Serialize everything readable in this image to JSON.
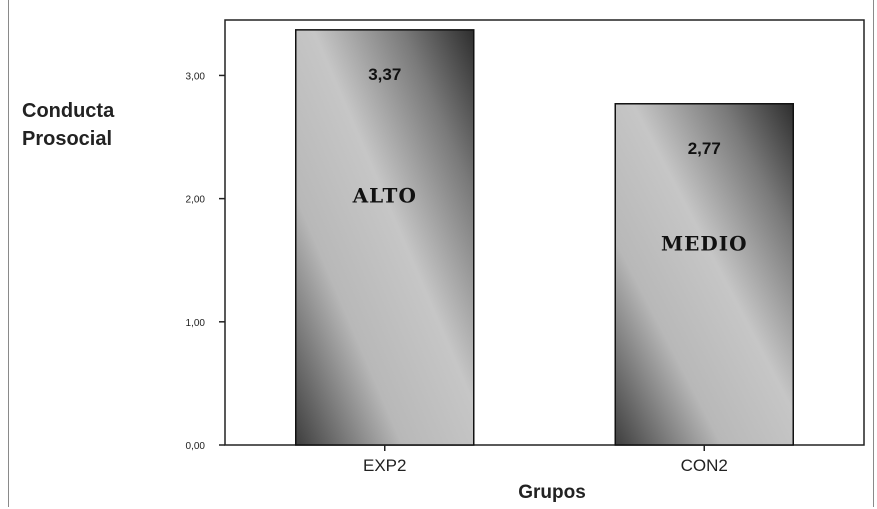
{
  "chart_data": {
    "type": "bar",
    "categories": [
      "EXP2",
      "CON2"
    ],
    "values": [
      3.37,
      2.77
    ],
    "value_labels": [
      "3,37",
      "2,77"
    ],
    "bar_annotations": [
      "ALTO",
      "MEDIO"
    ],
    "ylabel_lines": [
      "Conducta",
      "Prosocial"
    ],
    "xlabel": "Grupos",
    "ylim": [
      0,
      3.45
    ],
    "yticks": [
      0,
      1,
      2,
      3
    ],
    "ytick_labels": [
      "0,00",
      "1,00",
      "2,00",
      "3,00"
    ],
    "grid": false,
    "legend": "none"
  }
}
